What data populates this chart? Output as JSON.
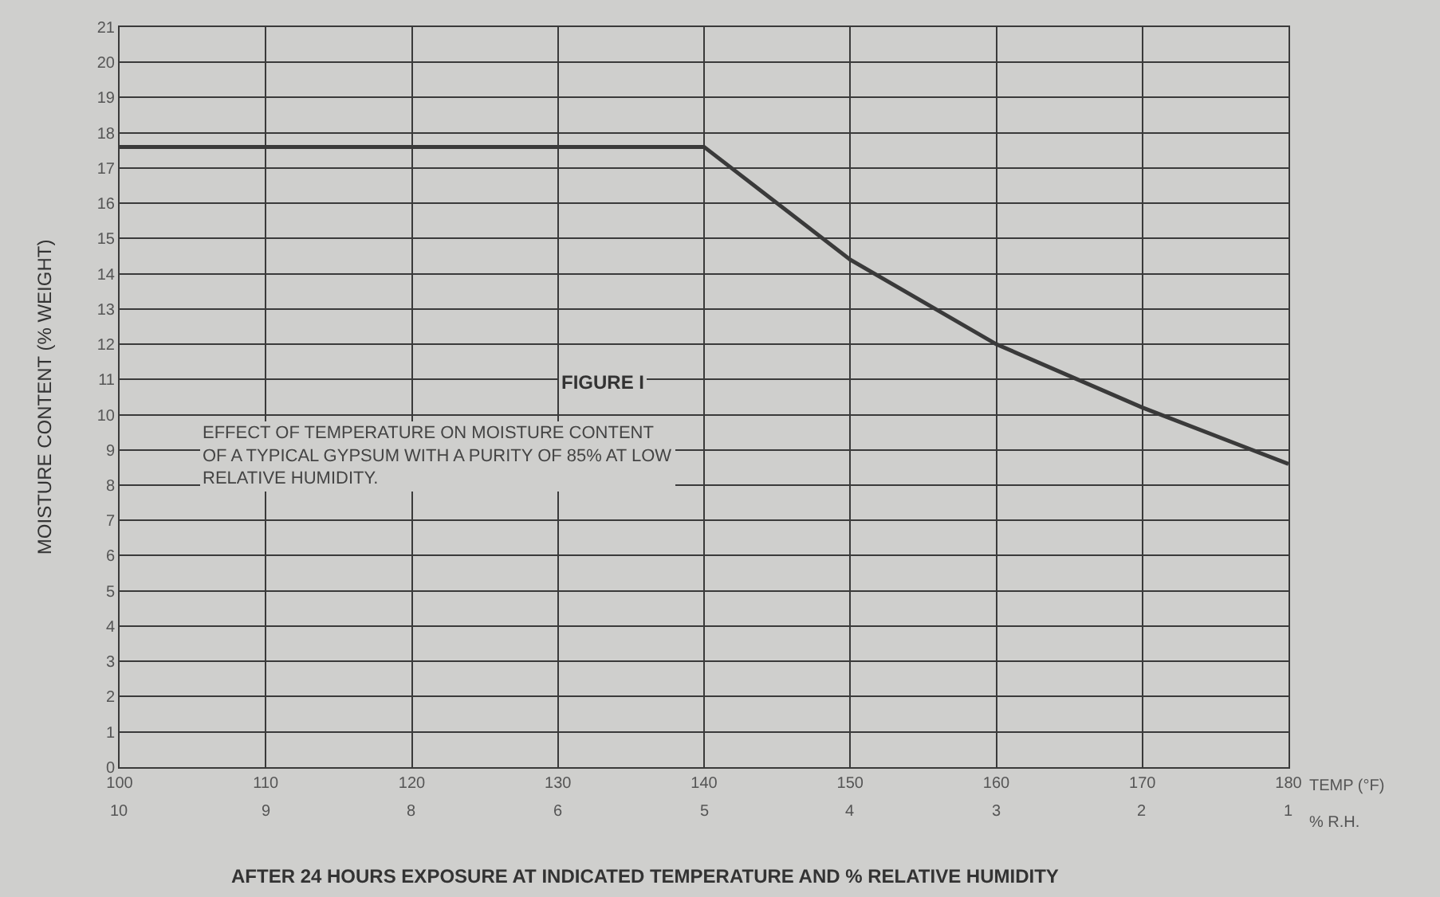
{
  "chart_data": {
    "type": "line",
    "title": "FIGURE I",
    "subtitle": "EFFECT OF TEMPERATURE ON MOISTURE CONTENT\nOF A TYPICAL GYPSUM WITH A PURITY OF 85% AT LOW\nRELATIVE HUMIDITY.",
    "xlabel": "TEMP (°F)",
    "x2label": "% R.H.",
    "ylabel": "MOISTURE CONTENT (% WEIGHT)",
    "annotations": [
      "AFTER 24 HOURS EXPOSURE AT INDICATED TEMPERATURE AND % RELATIVE HUMIDITY",
      "10",
      "9",
      "8",
      "6",
      "5",
      "4",
      "3",
      "2",
      "1"
    ],
    "x": [
      100,
      140,
      150,
      160,
      170,
      180
    ],
    "series": [
      {
        "color": "#3a3a3a",
        "values": [
          17.6,
          17.6,
          14.4,
          12.0,
          10.2,
          8.6
        ]
      }
    ],
    "xlim": [
      100,
      180
    ],
    "xticks": [
      100,
      110,
      120,
      130,
      140,
      150,
      160,
      170,
      180
    ],
    "ylim": [
      0,
      21
    ],
    "yticks": [
      0,
      1,
      2,
      3,
      4,
      5,
      6,
      7,
      8,
      9,
      10,
      11,
      12,
      13,
      14,
      15,
      16,
      17,
      18,
      19,
      20,
      21
    ],
    "grid": true,
    "legend": false,
    "marker": "none",
    "line_style": "solid"
  }
}
